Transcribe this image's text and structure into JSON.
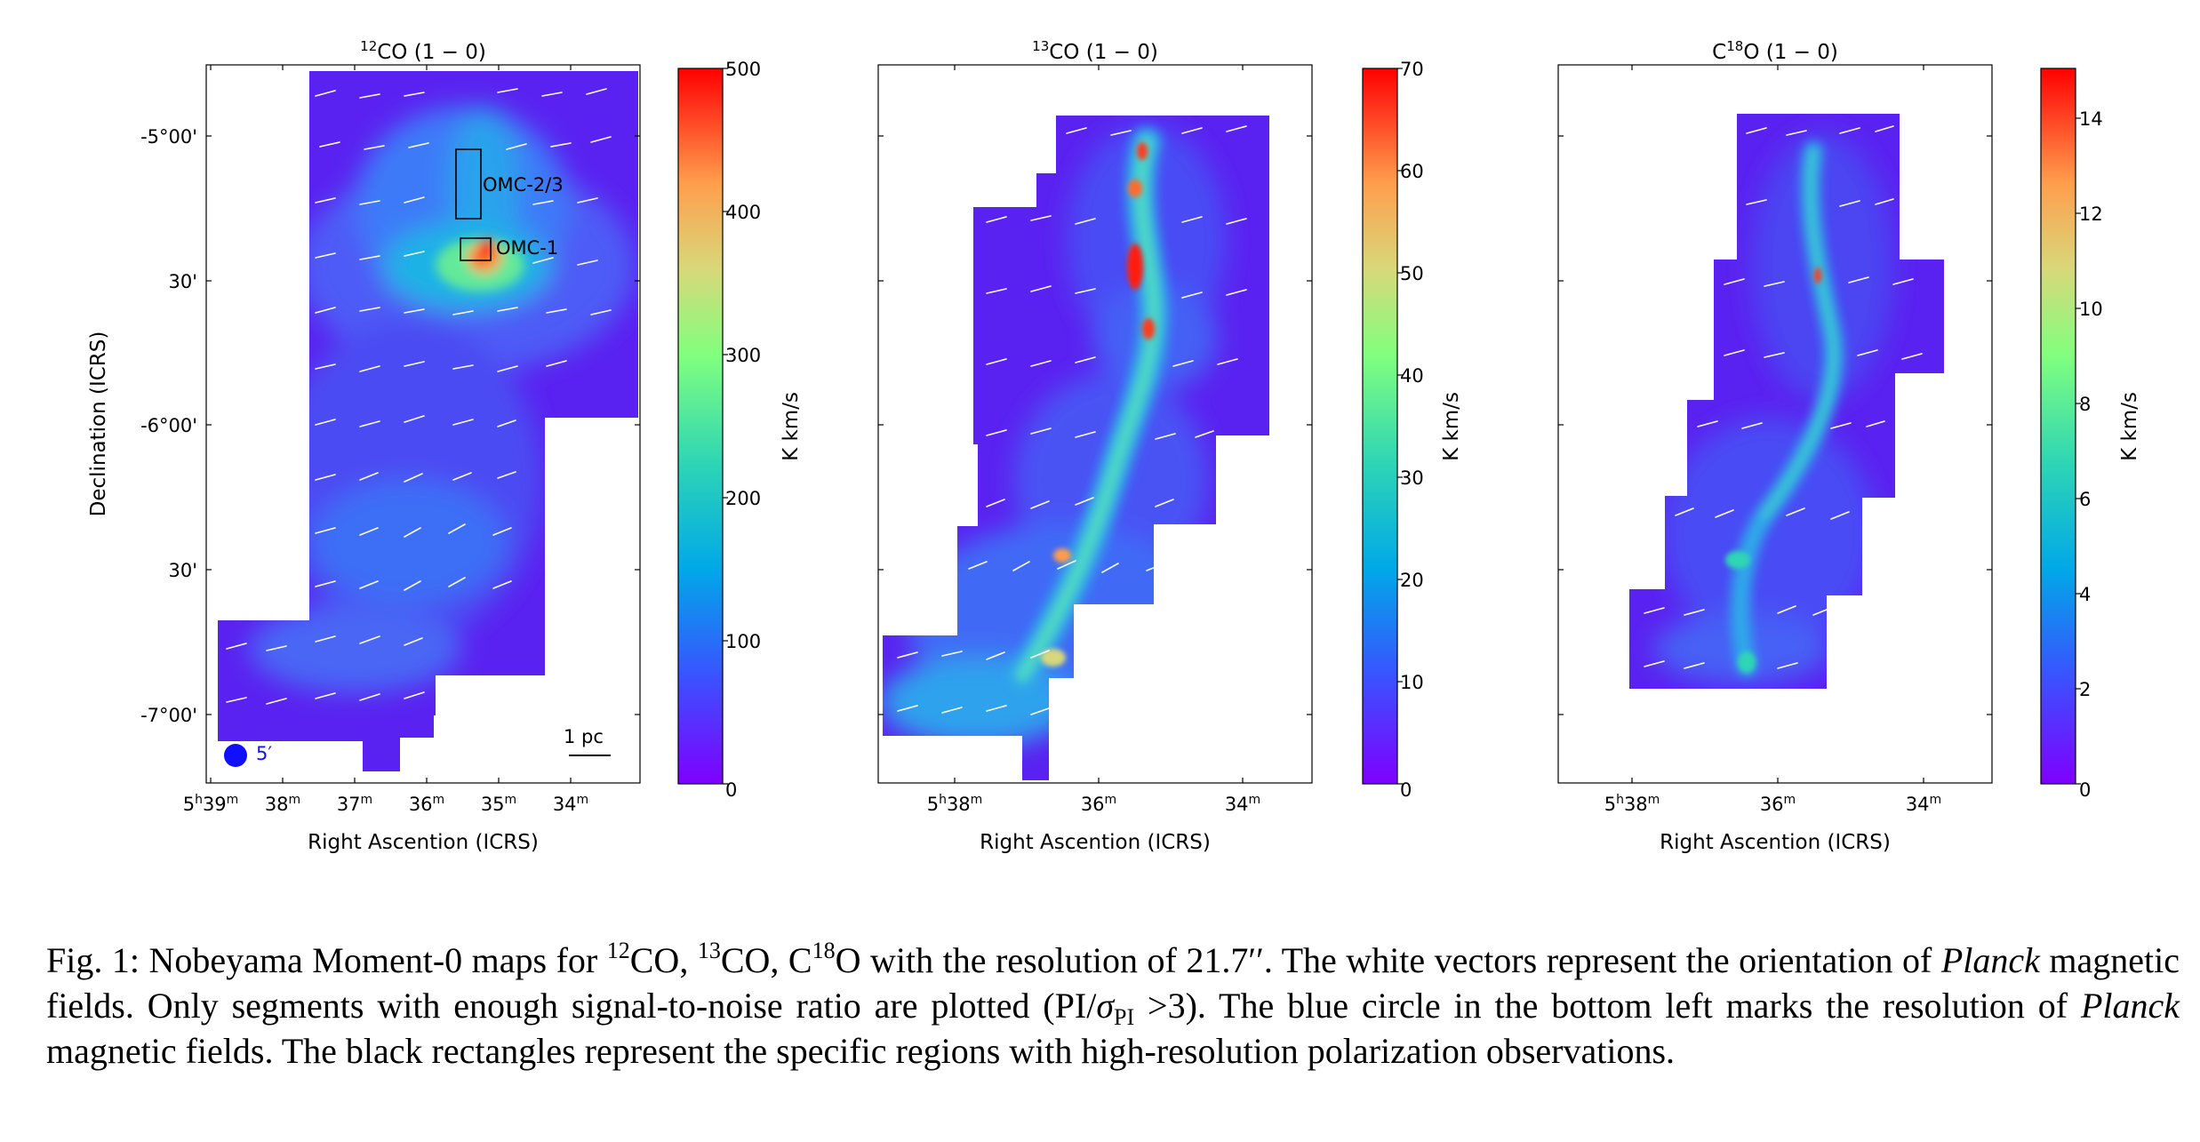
{
  "figure": {
    "ylabel": "Declination (ICRS)",
    "xlabel": "Right Ascention (ICRS)",
    "colorbar_label": "K km/s",
    "dec_ticks": [
      "-5°00'",
      "30'",
      "-6°00'",
      "30'",
      "-7°00'"
    ],
    "scalebar_label": "1 pc",
    "beam_label": "5′",
    "panels": [
      {
        "title_sup": "12",
        "title_main": "CO (1 − 0)",
        "ra_ticks": [
          {
            "h": "5",
            "hs": "h",
            "m": "39",
            "ms": "m"
          },
          {
            "m": "38",
            "ms": "m"
          },
          {
            "m": "37",
            "ms": "m"
          },
          {
            "m": "36",
            "ms": "m"
          },
          {
            "m": "35",
            "ms": "m"
          },
          {
            "m": "34",
            "ms": "m"
          }
        ],
        "colorbar_ticks": [
          "0",
          "100",
          "200",
          "300",
          "400",
          "500"
        ],
        "regions": [
          "OMC-2/3",
          "OMC-1"
        ]
      },
      {
        "title_sup": "13",
        "title_main": "CO (1 − 0)",
        "ra_ticks": [
          {
            "h": "5",
            "hs": "h",
            "m": "38",
            "ms": "m"
          },
          {
            "m": "36",
            "ms": "m"
          },
          {
            "m": "34",
            "ms": "m"
          }
        ],
        "colorbar_ticks": [
          "0",
          "10",
          "20",
          "30",
          "40",
          "50",
          "60",
          "70"
        ]
      },
      {
        "title_pre": "C",
        "title_sup": "18",
        "title_main": "O (1 − 0)",
        "ra_ticks": [
          {
            "h": "5",
            "hs": "h",
            "m": "38",
            "ms": "m"
          },
          {
            "m": "36",
            "ms": "m"
          },
          {
            "m": "34",
            "ms": "m"
          }
        ],
        "colorbar_ticks": [
          "0",
          "2",
          "4",
          "6",
          "8",
          "10",
          "12",
          "14"
        ]
      }
    ]
  },
  "caption": {
    "p1": "Fig. 1: Nobeyama Moment-0 maps for ",
    "s1": "12",
    "p2": "CO, ",
    "s2": "13",
    "p3": "CO, C",
    "s3": "18",
    "p4": "O with the resolution of 21.7′′. The white vectors represent the orientation of ",
    "i1": "Planck",
    "p5": " magnetic fields. Only segments with enough signal-to-noise ratio are plotted (PI/",
    "sigma": "σ",
    "sub1": "PI",
    "p6": " >3). The blue circle in the bottom left marks the resolution of ",
    "i2": "Planck",
    "p7": " magnetic fields. The black rectangles represent the specific regions with high-resolution polarization observations."
  },
  "colors": {
    "background_map": "#5a22f0",
    "beam": "#1010ff",
    "colormap": [
      "#7f00ff",
      "#3a52ff",
      "#00a8e8",
      "#2ed6b4",
      "#82ff7e",
      "#d8d87a",
      "#ff9e4c",
      "#ff3a1f",
      "#ff0000"
    ]
  }
}
